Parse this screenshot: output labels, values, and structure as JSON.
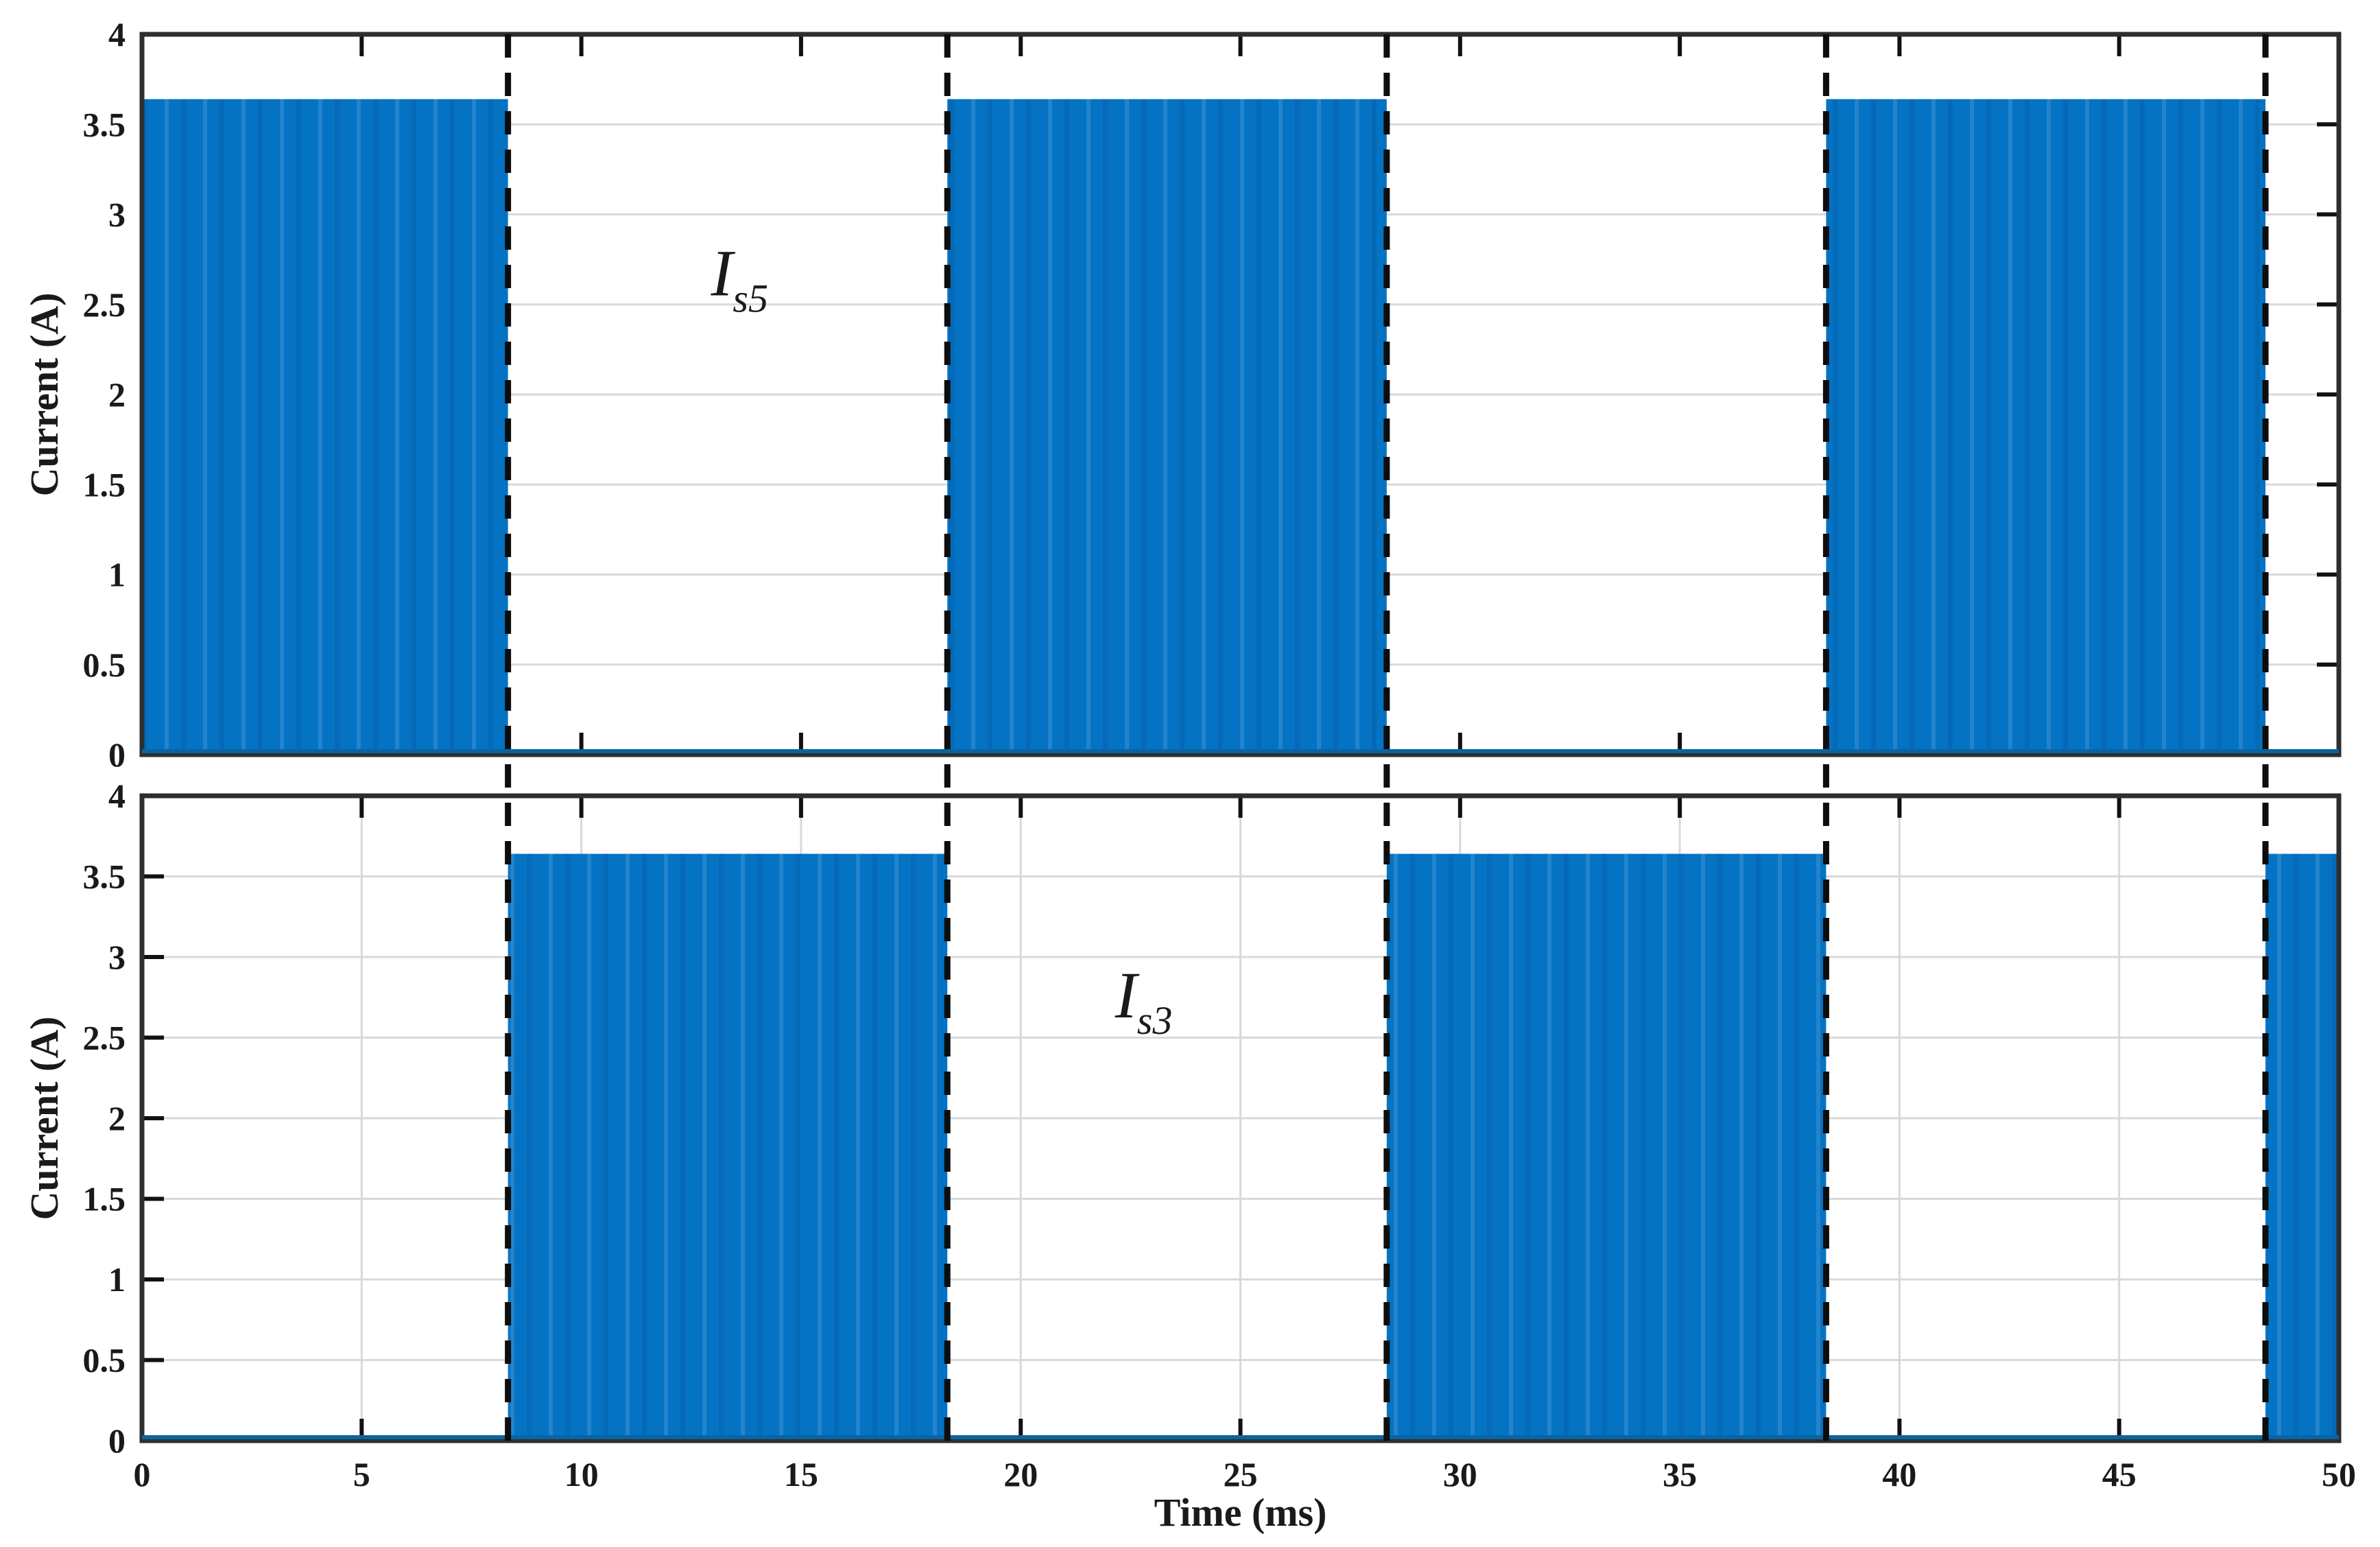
{
  "figure": {
    "background": "#ffffff",
    "description": "Two stacked subplots of switch currents versus time"
  },
  "styles": {
    "series_fill": "#0473c4",
    "series_stripe_light": "rgba(255,255,255,0.12)",
    "series_stripe_dark": "rgba(0,45,90,0.12)",
    "zero_line_blue": "#0a64a0",
    "dash_color": "#0d0d0d",
    "spine_color": "#2e2e2e",
    "grid_color": "#d9d9d9",
    "tick_color": "#111111",
    "text_color": "#1a1a1a"
  },
  "chart_data": [
    {
      "id": "Is5",
      "type": "area",
      "signal_label": {
        "main": "I",
        "sub": "s5"
      },
      "label_pos": {
        "t_ms": 13.6,
        "current_A": 2.68
      },
      "ylabel": "Current (A)",
      "xlabel": "",
      "xlim_ms": [
        0,
        50
      ],
      "ylim_A": [
        0,
        4
      ],
      "yticks": [
        "0",
        "0.5",
        "1",
        "1.5",
        "2",
        "2.5",
        "3",
        "3.5",
        "4"
      ],
      "xticks": [
        "0",
        "5",
        "10",
        "15",
        "20",
        "25",
        "30",
        "35",
        "40",
        "45",
        "50"
      ],
      "show_x_tick_labels": false,
      "grid_horizontal": true,
      "grid_vertical": false,
      "amplitude_A": 3.64,
      "on_intervals_ms": [
        [
          0,
          8.33
        ],
        [
          18.33,
          28.33
        ],
        [
          38.33,
          48.33
        ]
      ],
      "dashed_lines_ms": [
        8.33,
        18.33,
        28.33,
        38.33,
        48.33
      ]
    },
    {
      "id": "Is3",
      "type": "area",
      "signal_label": {
        "main": "I",
        "sub": "s3"
      },
      "label_pos": {
        "t_ms": 22.8,
        "current_A": 2.77
      },
      "ylabel": "Current (A)",
      "xlabel": "Time (ms)",
      "xlim_ms": [
        0,
        50
      ],
      "ylim_A": [
        0,
        4
      ],
      "yticks": [
        "0",
        "0.5",
        "1",
        "1.5",
        "2",
        "2.5",
        "3",
        "3.5",
        "4"
      ],
      "xticks": [
        "0",
        "5",
        "10",
        "15",
        "20",
        "25",
        "30",
        "35",
        "40",
        "45",
        "50"
      ],
      "show_x_tick_labels": true,
      "grid_horizontal": true,
      "grid_vertical": true,
      "amplitude_A": 3.64,
      "on_intervals_ms": [
        [
          8.33,
          18.33
        ],
        [
          28.33,
          38.33
        ],
        [
          48.33,
          50
        ]
      ],
      "dashed_lines_ms": [
        8.33,
        18.33,
        28.33,
        38.33,
        48.33
      ]
    }
  ]
}
